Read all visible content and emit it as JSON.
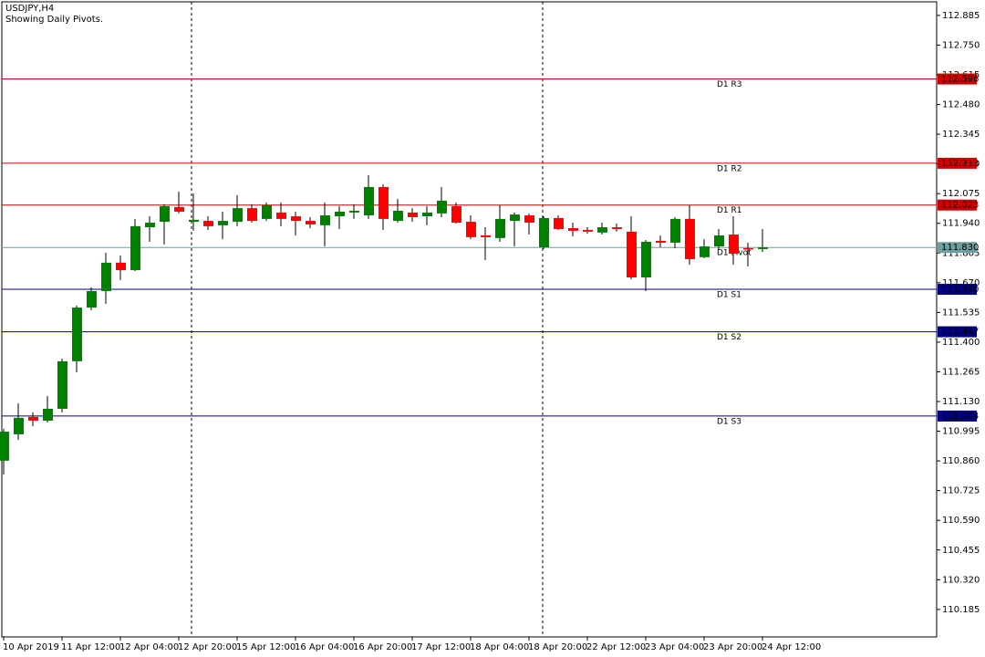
{
  "chart_data": {
    "type": "candlestick",
    "title": "USDJPY,H4",
    "subtitle": "Showing Daily Pivots.",
    "categories": [
      "10 Apr 2019",
      null,
      null,
      null,
      "11 Apr 12:00",
      null,
      null,
      null,
      "12 Apr 04:00",
      null,
      null,
      null,
      "12 Apr 20:00",
      null,
      null,
      null,
      "15 Apr 12:00",
      null,
      null,
      null,
      "16 Apr 04:00",
      null,
      null,
      null,
      "16 Apr 20:00",
      null,
      null,
      null,
      "17 Apr 12:00",
      null,
      null,
      null,
      "18 Apr 04:00",
      null,
      null,
      null,
      "18 Apr 20:00",
      null,
      null,
      null,
      "22 Apr 12:00",
      null,
      null,
      null,
      "23 Apr 04:00",
      null,
      null,
      null,
      "23 Apr 20:00",
      null,
      null,
      null,
      "24 Apr 12:00"
    ],
    "open": [
      110.861,
      110.981,
      111.06,
      111.043,
      111.097,
      111.313,
      111.557,
      111.632,
      111.761,
      111.727,
      111.922,
      111.947,
      112.014,
      111.947,
      111.951,
      111.931,
      111.947,
      112.009,
      111.96,
      111.989,
      111.972,
      111.951,
      111.931,
      111.972,
      111.989,
      111.976,
      112.105,
      111.951,
      111.989,
      111.972,
      111.985,
      112.018,
      111.947,
      111.885,
      111.873,
      111.951,
      111.976,
      111.831,
      111.964,
      111.918,
      111.91,
      111.898,
      111.922,
      111.902,
      111.694,
      111.86,
      111.852,
      111.96,
      111.786,
      111.835,
      111.889,
      111.827,
      111.823
    ],
    "high": [
      111.006,
      111.122,
      111.081,
      111.155,
      111.325,
      111.566,
      111.649,
      111.806,
      111.794,
      111.96,
      111.972,
      112.026,
      112.084,
      112.076,
      111.972,
      111.993,
      112.068,
      112.026,
      112.034,
      112.034,
      111.993,
      111.968,
      112.034,
      112.018,
      112.026,
      112.159,
      112.117,
      112.051,
      112.009,
      112.018,
      112.105,
      112.034,
      111.976,
      111.922,
      112.022,
      111.989,
      111.985,
      111.972,
      111.976,
      111.943,
      111.922,
      111.943,
      111.939,
      111.972,
      111.864,
      111.885,
      111.968,
      112.022,
      111.868,
      111.914,
      111.972,
      111.852,
      111.914
    ],
    "low": [
      110.799,
      110.956,
      111.018,
      111.035,
      111.081,
      111.263,
      111.545,
      111.574,
      111.682,
      111.723,
      111.856,
      111.844,
      111.985,
      111.906,
      111.91,
      111.868,
      111.927,
      111.943,
      111.951,
      111.927,
      111.885,
      111.918,
      111.835,
      111.914,
      111.96,
      111.96,
      111.91,
      111.943,
      111.947,
      111.931,
      111.968,
      111.939,
      111.868,
      111.773,
      111.856,
      111.835,
      111.889,
      111.823,
      111.91,
      111.881,
      111.893,
      111.889,
      111.902,
      111.686,
      111.632,
      111.831,
      111.827,
      111.752,
      111.781,
      111.819,
      111.752,
      111.744,
      111.81
    ],
    "close": [
      110.993,
      111.056,
      111.043,
      111.097,
      111.313,
      111.557,
      111.632,
      111.761,
      111.727,
      111.927,
      111.943,
      112.018,
      111.993,
      111.956,
      111.927,
      111.951,
      112.009,
      111.951,
      112.022,
      111.96,
      111.951,
      111.935,
      111.976,
      111.993,
      111.997,
      112.105,
      111.96,
      111.997,
      111.968,
      111.989,
      112.043,
      111.943,
      111.877,
      111.877,
      111.96,
      111.98,
      111.943,
      111.964,
      111.914,
      111.906,
      111.902,
      111.922,
      111.914,
      111.694,
      111.856,
      111.852,
      111.96,
      111.777,
      111.835,
      111.885,
      111.802,
      111.823,
      111.831
    ],
    "up_color": "#008000",
    "down_color": "#ff0000",
    "ylim": [
      110.06,
      112.955
    ],
    "yticks": [
      112.885,
      {
        "value": 112.75,
        "label": "112.750"
      },
      112.615,
      {
        "value": 112.48,
        "label": "112.480"
      },
      112.345,
      {
        "value": 112.21,
        "label": "112.210"
      },
      112.075,
      {
        "value": 111.94,
        "label": "111.940"
      },
      111.805,
      {
        "value": 111.67,
        "label": "111.670"
      },
      111.535,
      {
        "value": 111.4,
        "label": "111.400"
      },
      111.265,
      {
        "value": 111.13,
        "label": "111.130"
      },
      110.995,
      {
        "value": 110.86,
        "label": "110.860"
      },
      110.725,
      {
        "value": 110.59,
        "label": "110.590"
      },
      110.455,
      {
        "value": 110.32,
        "label": "110.320"
      },
      110.185
    ],
    "levels": [
      {
        "name": "D1 R3",
        "value": 112.596,
        "color": "#cc0000"
      },
      {
        "name": "D1 R2",
        "value": 112.213,
        "color": "#cc0000"
      },
      {
        "name": "D1 R1",
        "value": 112.023,
        "color": "#cc0000"
      },
      {
        "name": "D1 Pivot",
        "value": 111.83,
        "value_label": "111.830",
        "color": "#6e9e9e"
      },
      {
        "name": "D1 S1",
        "value": 111.64,
        "value_label": "111.640",
        "color": "#000080"
      },
      {
        "name": "D1 S2",
        "value": 111.447,
        "color": "#000080"
      },
      {
        "name": "D1 S3",
        "value": 111.064,
        "color": "#000080"
      }
    ]
  }
}
